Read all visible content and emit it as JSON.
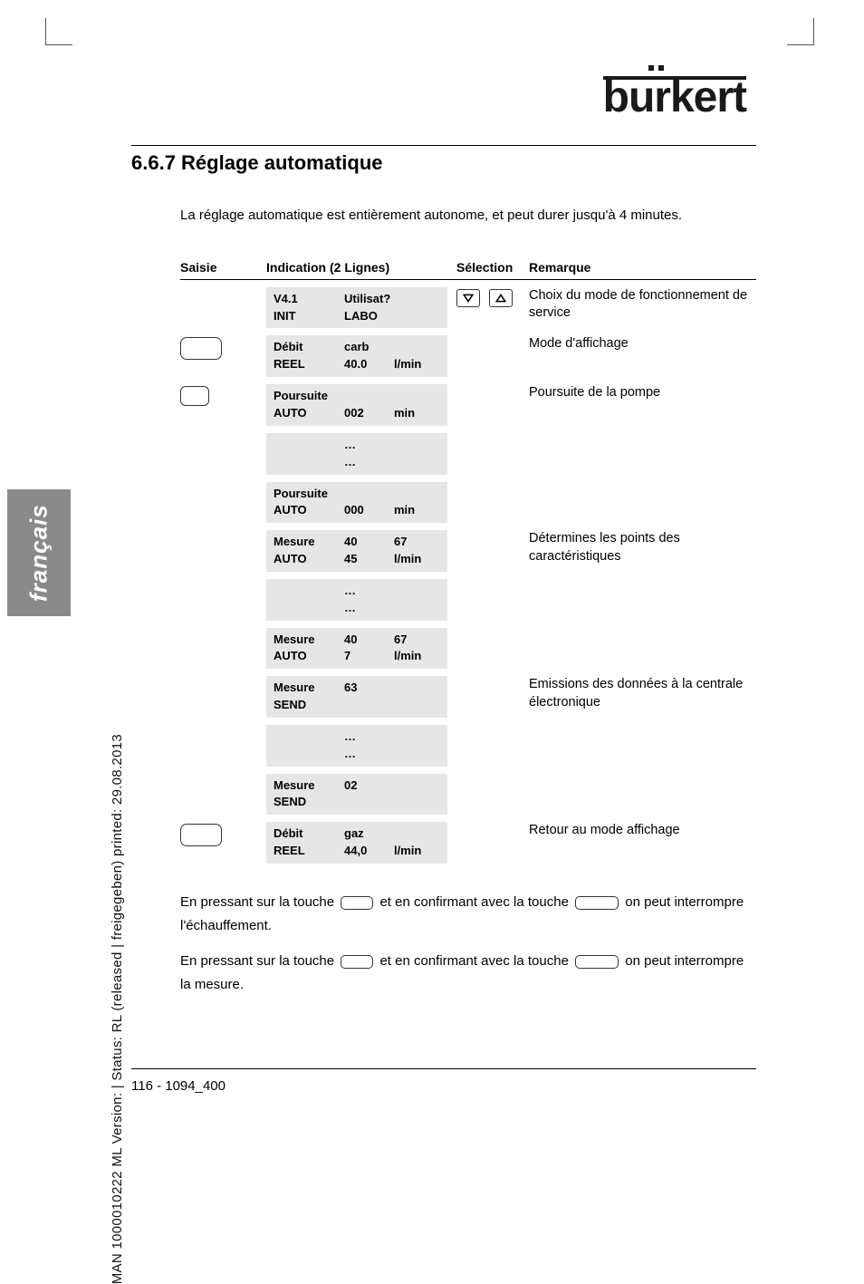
{
  "logo_text": "burkert",
  "heading": "6.6.7 Réglage automatique",
  "intro": "La réglage automatique est entièrement autonome, et peut durer jusqu'à 4 minutes.",
  "headers": {
    "saisie": "Saisie",
    "indication": "Indication (2 Lignes)",
    "selection": "Sélection",
    "remarque": "Remarque"
  },
  "rows": [
    {
      "saisie": null,
      "ind": [
        [
          "V4.1",
          "Utilisat?",
          ""
        ],
        [
          "INIT",
          "LABO",
          ""
        ]
      ],
      "sel": true,
      "rem": "Choix du mode de fonctionnement de service"
    },
    {
      "saisie": "btn",
      "ind": [
        [
          "Débit",
          "carb",
          ""
        ],
        [
          "REEL",
          "40.0",
          "l/min"
        ]
      ],
      "rem": "Mode d'affichage"
    },
    {
      "saisie": "small",
      "ind": [
        [
          "Poursuite",
          "",
          ""
        ],
        [
          "AUTO",
          "002",
          "min"
        ]
      ],
      "rem": "Poursuite de la pompe"
    },
    {
      "ind": [
        [
          "",
          "…",
          ""
        ],
        [
          "",
          "…",
          ""
        ]
      ]
    },
    {
      "ind": [
        [
          "Poursuite",
          "",
          ""
        ],
        [
          "AUTO",
          "000",
          "min"
        ]
      ]
    },
    {
      "ind": [
        [
          "Mesure",
          " 40",
          "67"
        ],
        [
          "AUTO",
          " 45",
          "l/min"
        ]
      ],
      "rem": "Détermines les points des caractéristiques"
    },
    {
      "ind": [
        [
          "",
          "…",
          ""
        ],
        [
          "",
          "…",
          ""
        ]
      ]
    },
    {
      "ind": [
        [
          "Mesure",
          " 40",
          "67"
        ],
        [
          "AUTO",
          " 7",
          "l/min"
        ]
      ]
    },
    {
      "ind": [
        [
          "Mesure",
          " 63",
          ""
        ],
        [
          "SEND",
          "",
          ""
        ]
      ],
      "rem": "Emissions des données à la centrale électronique"
    },
    {
      "ind": [
        [
          "",
          "…",
          ""
        ],
        [
          "",
          "…",
          ""
        ]
      ]
    },
    {
      "ind": [
        [
          "Mesure",
          " 02",
          ""
        ],
        [
          "SEND",
          "",
          ""
        ]
      ]
    },
    {
      "saisie": "btn",
      "ind": [
        [
          "Débit",
          "gaz",
          ""
        ],
        [
          "REEL",
          "44,0",
          "l/min"
        ]
      ],
      "rem": "Retour au mode affichage"
    }
  ],
  "bottom": {
    "p1a": "En pressant sur la touche",
    "p1b": "et en confirmant avec la touche",
    "p1c": "on peut interrompre l'échauffement.",
    "p2a": "En pressant sur la touche",
    "p2b": "et en confirmant avec la touche",
    "p2c": "on peut interrompre la mesure."
  },
  "footer": "116   -   1094_400",
  "side_tab": "français",
  "side_text": "MAN  1000010222  ML  Version:  |  Status: RL (released | freigegeben)  printed: 29.08.2013"
}
